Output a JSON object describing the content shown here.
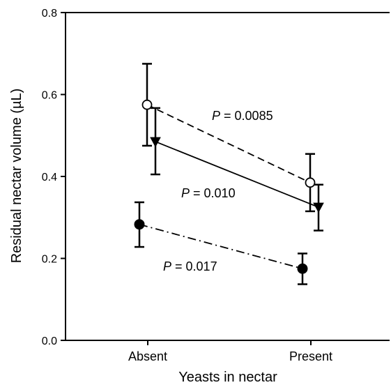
{
  "chart_data": {
    "type": "line",
    "title": "",
    "xlabel": "Yeasts in nectar",
    "ylabel": "Residual nectar volume (µL)",
    "categories": [
      "Absent",
      "Present"
    ],
    "ylim": [
      0,
      0.8
    ],
    "yticks": [
      "0.0",
      "0.2",
      "0.4",
      "0.6",
      "0.8"
    ],
    "grid": false,
    "series": [
      {
        "marker": "open-circle",
        "linestyle": "dashed",
        "values": [
          0.575,
          0.385
        ],
        "error_low": [
          0.475,
          0.315
        ],
        "error_high": [
          0.675,
          0.455
        ]
      },
      {
        "marker": "filled-triangle-down",
        "linestyle": "solid",
        "values": [
          0.485,
          0.325
        ],
        "error_low": [
          0.405,
          0.268
        ],
        "error_high": [
          0.567,
          0.38
        ]
      },
      {
        "marker": "filled-circle",
        "linestyle": "dash-dot",
        "values": [
          0.283,
          0.175
        ],
        "error_low": [
          0.228,
          0.137
        ],
        "error_high": [
          0.337,
          0.212
        ]
      }
    ],
    "annotations": [
      {
        "prefix": "P",
        "text": " = 0.0085",
        "series": 0
      },
      {
        "prefix": "P",
        "text": " = 0.010",
        "series": 1
      },
      {
        "prefix": "P",
        "text": " = 0.017",
        "series": 2
      }
    ]
  }
}
